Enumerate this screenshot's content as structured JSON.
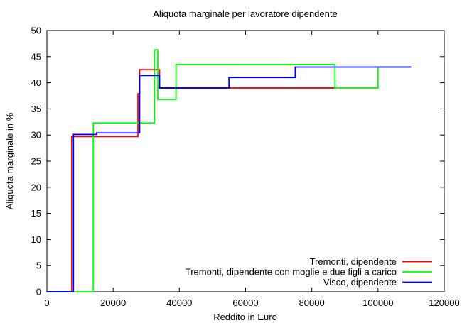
{
  "chart_data": {
    "type": "line",
    "step": true,
    "title": "Aliquota marginale per lavoratore dipendente",
    "xlabel": "Reddito in Euro",
    "ylabel": "Aliquota marginale in %",
    "xlim": [
      0,
      120000
    ],
    "ylim": [
      0,
      50
    ],
    "xticks": [
      0,
      20000,
      40000,
      60000,
      80000,
      100000,
      120000
    ],
    "yticks": [
      0,
      5,
      10,
      15,
      20,
      25,
      30,
      35,
      40,
      45,
      50
    ],
    "grid": false,
    "legend_position": "bottom-right",
    "series": [
      {
        "name": "Tremonti, dipendente",
        "color": "#ff0000",
        "points": [
          [
            0,
            0
          ],
          [
            7500,
            0
          ],
          [
            7500,
            29.7
          ],
          [
            27500,
            29.7
          ],
          [
            27500,
            37.9
          ],
          [
            28000,
            37.9
          ],
          [
            28000,
            42.5
          ],
          [
            34000,
            42.5
          ],
          [
            34000,
            39
          ],
          [
            87000,
            39
          ]
        ]
      },
      {
        "name": "Tremonti, dipendente con moglie e due figli a carico",
        "color": "#00ff00",
        "points": [
          [
            0,
            0
          ],
          [
            14000,
            0
          ],
          [
            14000,
            32.3
          ],
          [
            32500,
            32.3
          ],
          [
            32500,
            46.3
          ],
          [
            33500,
            46.3
          ],
          [
            33500,
            36.8
          ],
          [
            39000,
            36.8
          ],
          [
            39000,
            43.5
          ],
          [
            87000,
            43.5
          ],
          [
            87000,
            39
          ],
          [
            100000,
            39
          ],
          [
            100000,
            43
          ],
          [
            110000,
            43
          ]
        ]
      },
      {
        "name": "Visco, dipendente",
        "color": "#0000ff",
        "points": [
          [
            0,
            0
          ],
          [
            8000,
            0
          ],
          [
            8000,
            30.1
          ],
          [
            15000,
            30.1
          ],
          [
            15000,
            30.4
          ],
          [
            28000,
            30.4
          ],
          [
            28000,
            41.4
          ],
          [
            34000,
            41.4
          ],
          [
            34000,
            39
          ],
          [
            55000,
            39
          ],
          [
            55000,
            41
          ],
          [
            75000,
            41
          ],
          [
            75000,
            43
          ],
          [
            110000,
            43
          ]
        ]
      }
    ]
  }
}
